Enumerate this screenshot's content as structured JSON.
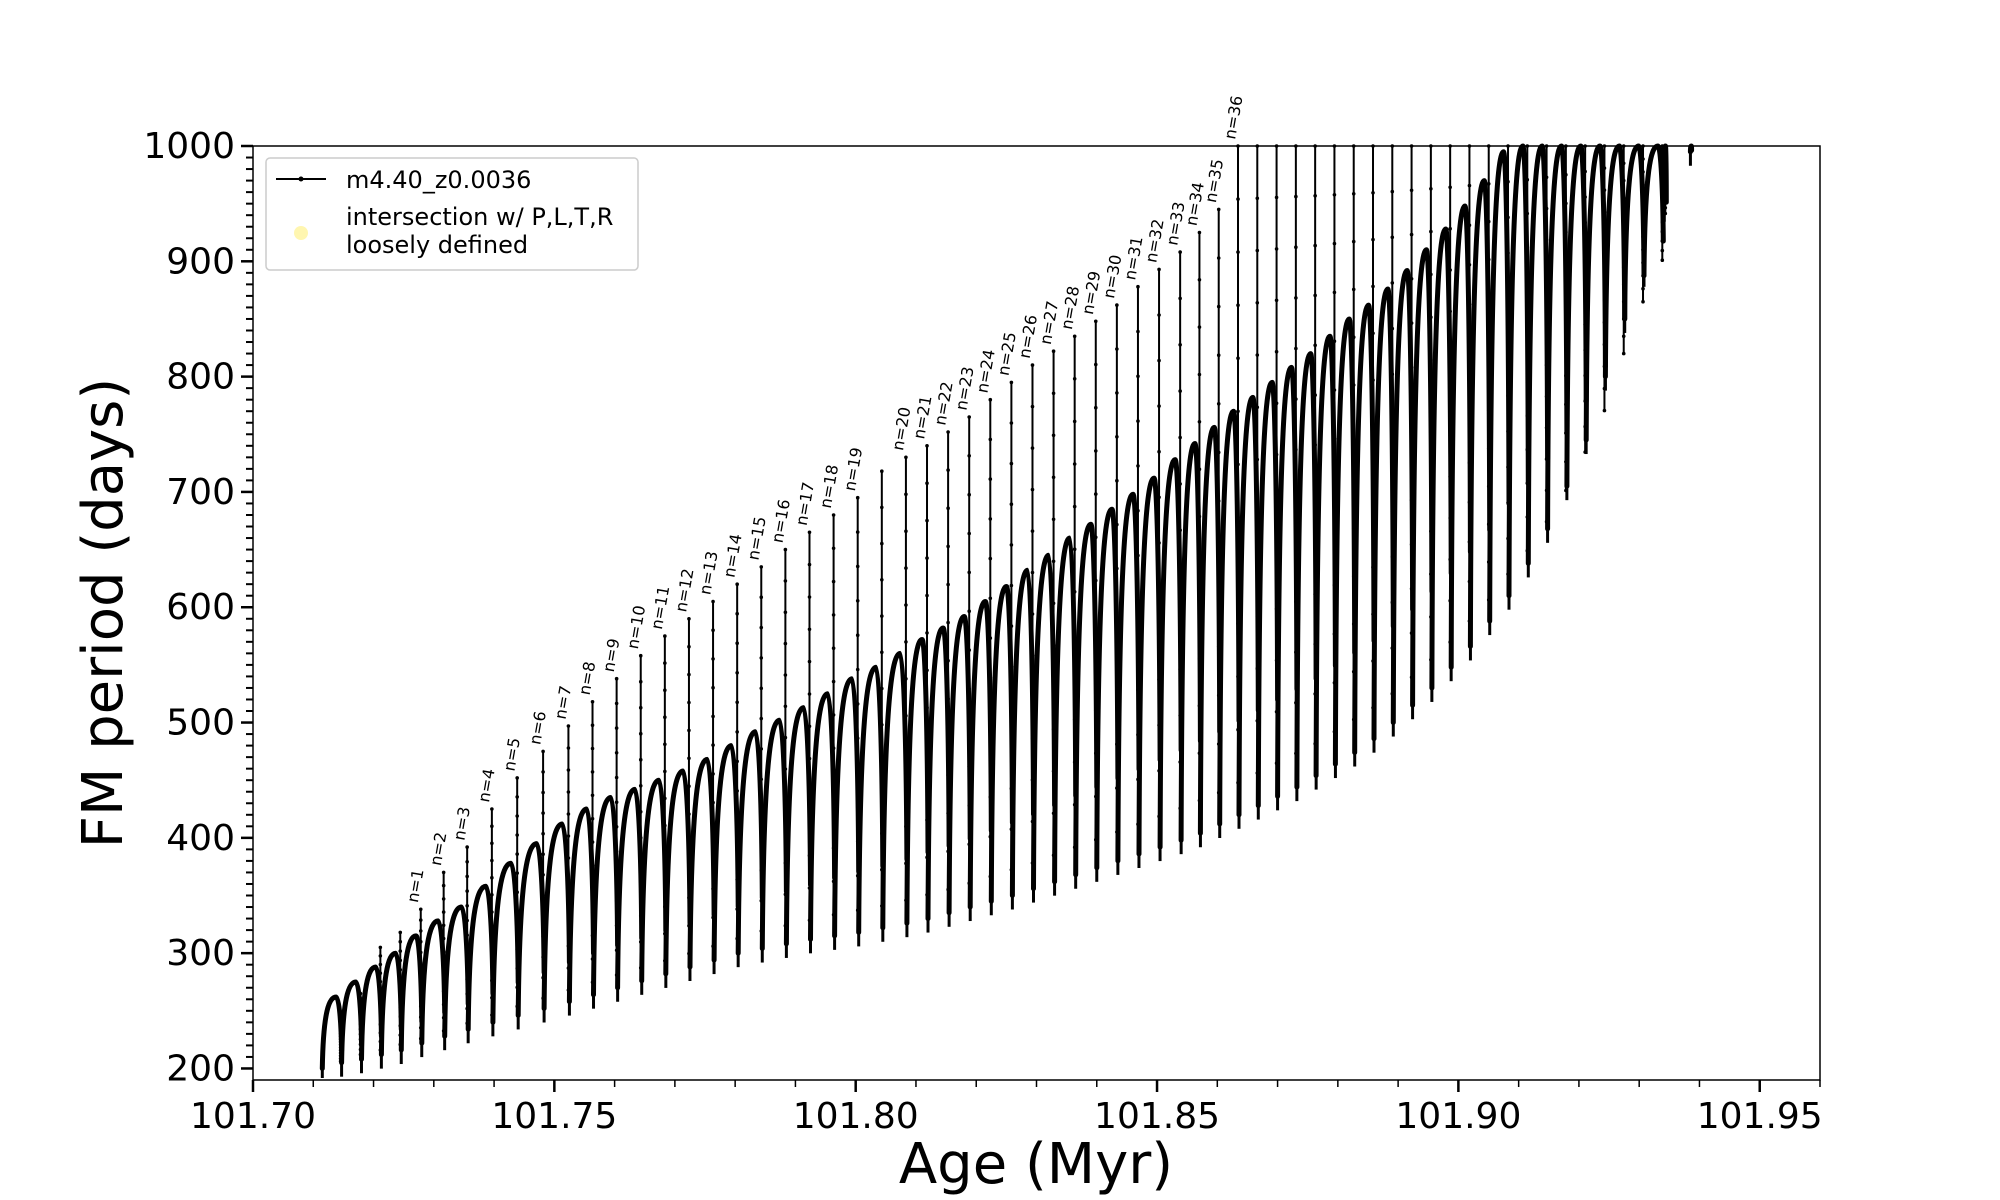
{
  "chart_data": {
    "type": "line",
    "xlabel": "Age (Myr)",
    "ylabel": "FM period (days)",
    "xlim": [
      101.7,
      101.96
    ],
    "ylim": [
      190,
      1000
    ],
    "x_ticks": [
      "101.70",
      "101.75",
      "101.80",
      "101.85",
      "101.90",
      "101.95"
    ],
    "y_ticks": [
      "200",
      "300",
      "400",
      "500",
      "600",
      "700",
      "800",
      "900",
      "1000"
    ],
    "grid": false,
    "legend": {
      "placement": "top-left",
      "entries": [
        {
          "label": "m4.40_z0.0036",
          "marker": "line-with-dots",
          "color": "#000000"
        },
        {
          "label_lines": [
            "intersection w/ P,L,T,R",
            "loosely defined"
          ],
          "marker": "circle",
          "color": "#fff6b0"
        }
      ]
    },
    "series": [
      {
        "name": "m4.40_z0.0036",
        "color": "#000000",
        "description_fields": [
          "x_start",
          "x_end",
          "cycle_low",
          "cycle_high",
          "spike_top",
          "spike_bottom"
        ],
        "cycles": [
          {
            "x": [
              101.7115,
              101.7147
            ],
            "y_low": 200,
            "y_high": 262,
            "spike_top": 235
          },
          {
            "x": [
              101.7147,
              101.718
            ],
            "y_low": 205,
            "y_high": 275,
            "spike_top": 265
          },
          {
            "x": [
              101.718,
              101.7213
            ],
            "y_low": 208,
            "y_high": 288,
            "spike_top": 305
          },
          {
            "x": [
              101.7213,
              101.7246
            ],
            "y_low": 212,
            "y_high": 300,
            "spike_top": 318
          },
          {
            "x": [
              101.7246,
              101.728
            ],
            "y_low": 216,
            "y_high": 315,
            "spike_top": 338,
            "n": "n=1"
          },
          {
            "x": [
              101.728,
              101.7318
            ],
            "y_low": 222,
            "y_high": 328,
            "spike_top": 370,
            "n": "n=2"
          },
          {
            "x": [
              101.7318,
              101.7357
            ],
            "y_low": 228,
            "y_high": 340,
            "spike_top": 392,
            "n": "n=3"
          },
          {
            "x": [
              101.7357,
              101.7398
            ],
            "y_low": 234,
            "y_high": 358,
            "spike_top": 425,
            "n": "n=4"
          },
          {
            "x": [
              101.7398,
              101.744
            ],
            "y_low": 240,
            "y_high": 378,
            "spike_top": 452,
            "n": "n=5"
          },
          {
            "x": [
              101.744,
              101.7483
            ],
            "y_low": 246,
            "y_high": 395,
            "spike_top": 475,
            "n": "n=6"
          },
          {
            "x": [
              101.7483,
              101.7525
            ],
            "y_low": 252,
            "y_high": 412,
            "spike_top": 497,
            "n": "n=7"
          },
          {
            "x": [
              101.7525,
              101.7565
            ],
            "y_low": 258,
            "y_high": 425,
            "spike_top": 518,
            "n": "n=8"
          },
          {
            "x": [
              101.7565,
              101.7605
            ],
            "y_low": 264,
            "y_high": 435,
            "spike_top": 538,
            "n": "n=9"
          },
          {
            "x": [
              101.7605,
              101.7645
            ],
            "y_low": 270,
            "y_high": 442,
            "spike_top": 558,
            "n": "n=10"
          },
          {
            "x": [
              101.7645,
              101.7685
            ],
            "y_low": 276,
            "y_high": 450,
            "spike_top": 575,
            "n": "n=11"
          },
          {
            "x": [
              101.7685,
              101.7725
            ],
            "y_low": 282,
            "y_high": 458,
            "spike_top": 590,
            "n": "n=12"
          },
          {
            "x": [
              101.7725,
              101.7765
            ],
            "y_low": 288,
            "y_high": 468,
            "spike_top": 605,
            "n": "n=13"
          },
          {
            "x": [
              101.7765,
              101.7805
            ],
            "y_low": 294,
            "y_high": 480,
            "spike_top": 620,
            "n": "n=14"
          },
          {
            "x": [
              101.7805,
              101.7845
            ],
            "y_low": 300,
            "y_high": 492,
            "spike_top": 635,
            "n": "n=15"
          },
          {
            "x": [
              101.7845,
              101.7885
            ],
            "y_low": 304,
            "y_high": 502,
            "spike_top": 650,
            "n": "n=16"
          },
          {
            "x": [
              101.7885,
              101.7925
            ],
            "y_low": 308,
            "y_high": 513,
            "spike_top": 665,
            "n": "n=17"
          },
          {
            "x": [
              101.7925,
              101.7965
            ],
            "y_low": 312,
            "y_high": 525,
            "spike_top": 680,
            "n": "n=18"
          },
          {
            "x": [
              101.7965,
              101.8005
            ],
            "y_low": 315,
            "y_high": 538,
            "spike_top": 695,
            "n": "n=19"
          },
          {
            "x": [
              101.8005,
              101.8045
            ],
            "y_low": 318,
            "y_high": 548,
            "spike_top": 718
          },
          {
            "x": [
              101.8045,
              101.8085
            ],
            "y_low": 322,
            "y_high": 560,
            "spike_top": 730,
            "n": "n=20"
          },
          {
            "x": [
              101.8085,
              101.812
            ],
            "y_low": 326,
            "y_high": 572,
            "spike_top": 740,
            "n": "n=21"
          },
          {
            "x": [
              101.812,
              101.8155
            ],
            "y_low": 330,
            "y_high": 582,
            "spike_top": 752,
            "n": "n=22"
          },
          {
            "x": [
              101.8155,
              101.819
            ],
            "y_low": 335,
            "y_high": 592,
            "spike_top": 765,
            "n": "n=23"
          },
          {
            "x": [
              101.819,
              101.8225
            ],
            "y_low": 340,
            "y_high": 605,
            "spike_top": 780,
            "n": "n=24"
          },
          {
            "x": [
              101.8225,
              101.826
            ],
            "y_low": 345,
            "y_high": 618,
            "spike_top": 795,
            "n": "n=25"
          },
          {
            "x": [
              101.826,
              101.8295
            ],
            "y_low": 350,
            "y_high": 632,
            "spike_top": 810,
            "n": "n=26"
          },
          {
            "x": [
              101.8295,
              101.833
            ],
            "y_low": 356,
            "y_high": 645,
            "spike_top": 822,
            "n": "n=27"
          },
          {
            "x": [
              101.833,
              101.8365
            ],
            "y_low": 362,
            "y_high": 660,
            "spike_top": 835,
            "n": "n=28"
          },
          {
            "x": [
              101.8365,
              101.84
            ],
            "y_low": 368,
            "y_high": 672,
            "spike_top": 848,
            "n": "n=29"
          },
          {
            "x": [
              101.84,
              101.8435
            ],
            "y_low": 374,
            "y_high": 685,
            "spike_top": 862,
            "n": "n=30"
          },
          {
            "x": [
              101.8435,
              101.847
            ],
            "y_low": 380,
            "y_high": 698,
            "spike_top": 878,
            "n": "n=31"
          },
          {
            "x": [
              101.847,
              101.8505
            ],
            "y_low": 386,
            "y_high": 712,
            "spike_top": 893,
            "n": "n=32"
          },
          {
            "x": [
              101.8505,
              101.854
            ],
            "y_low": 392,
            "y_high": 728,
            "spike_top": 908,
            "n": "n=33"
          },
          {
            "x": [
              101.854,
              101.8572
            ],
            "y_low": 398,
            "y_high": 742,
            "spike_top": 925,
            "n": "n=34"
          },
          {
            "x": [
              101.8572,
              101.8604
            ],
            "y_low": 404,
            "y_high": 756,
            "spike_top": 945,
            "n": "n=35"
          },
          {
            "x": [
              101.8604,
              101.8636
            ],
            "y_low": 412,
            "y_high": 770,
            "spike_top": 1000,
            "n": "n=36"
          },
          {
            "x": [
              101.8636,
              101.8668
            ],
            "y_low": 420,
            "y_high": 782,
            "spike_top": 1000
          },
          {
            "x": [
              101.8668,
              101.87
            ],
            "y_low": 428,
            "y_high": 795,
            "spike_top": 1000
          },
          {
            "x": [
              101.87,
              101.8732
            ],
            "y_low": 436,
            "y_high": 808,
            "spike_top": 1000
          },
          {
            "x": [
              101.8732,
              101.8764
            ],
            "y_low": 444,
            "y_high": 820,
            "spike_top": 1000
          },
          {
            "x": [
              101.8764,
              101.8796
            ],
            "y_low": 454,
            "y_high": 835,
            "spike_top": 1000
          },
          {
            "x": [
              101.8796,
              101.8828
            ],
            "y_low": 464,
            "y_high": 850,
            "spike_top": 1000
          },
          {
            "x": [
              101.8828,
              101.886
            ],
            "y_low": 474,
            "y_high": 862,
            "spike_top": 1000
          },
          {
            "x": [
              101.886,
              101.8892
            ],
            "y_low": 486,
            "y_high": 876,
            "spike_top": 1000
          },
          {
            "x": [
              101.8892,
              101.8924
            ],
            "y_low": 500,
            "y_high": 892,
            "spike_top": 1000
          },
          {
            "x": [
              101.8924,
              101.8956
            ],
            "y_low": 515,
            "y_high": 910,
            "spike_top": 1000
          },
          {
            "x": [
              101.8956,
              101.8988
            ],
            "y_low": 530,
            "y_high": 928,
            "spike_top": 1000
          },
          {
            "x": [
              101.8988,
              101.902
            ],
            "y_low": 548,
            "y_high": 948,
            "spike_top": 1000
          },
          {
            "x": [
              101.902,
              101.9052
            ],
            "y_low": 566,
            "y_high": 970,
            "spike_top": 1000
          },
          {
            "x": [
              101.9052,
              101.9084
            ],
            "y_low": 588,
            "y_high": 995,
            "spike_top": 1000
          },
          {
            "x": [
              101.9084,
              101.9116
            ],
            "y_low": 610,
            "y_high": 1000,
            "spike_top": 1000
          },
          {
            "x": [
              101.9116,
              101.9148
            ],
            "y_low": 638,
            "y_high": 1000,
            "spike_top": 1000
          },
          {
            "x": [
              101.9148,
              101.918
            ],
            "y_low": 668,
            "y_high": 1000,
            "spike_top": 1000
          },
          {
            "x": [
              101.918,
              101.9212
            ],
            "y_low": 705,
            "y_high": 1000,
            "spike_top": 1000
          },
          {
            "x": [
              101.9212,
              101.9244
            ],
            "y_low": 745,
            "y_high": 1000,
            "spike_top": 1000
          },
          {
            "x": [
              101.9244,
              101.9276
            ],
            "y_low": 800,
            "y_high": 1000,
            "spike_top": 1000
          },
          {
            "x": [
              101.9276,
              101.9308
            ],
            "y_low": 850,
            "y_high": 1000,
            "spike_top": 1000
          },
          {
            "x": [
              101.9308,
              101.934
            ],
            "y_low": 890,
            "y_high": 1000,
            "spike_top": 1000
          },
          {
            "x": [
              101.934,
              101.9345
            ],
            "y_low": 935,
            "y_high": 1000,
            "spike_top": 1000
          },
          {
            "x": [
              101.9385,
              101.9387
            ],
            "y_low": 995,
            "y_high": 1000,
            "spike_top": 1000
          }
        ]
      }
    ]
  }
}
